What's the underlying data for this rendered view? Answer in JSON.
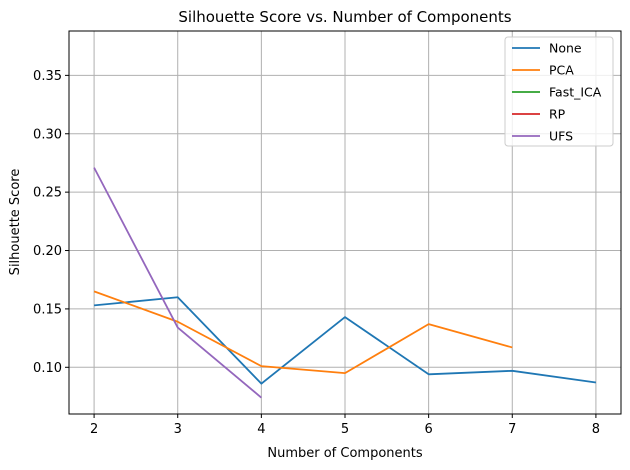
{
  "chart_data": {
    "type": "line",
    "title": "Silhouette Score vs. Number of Components",
    "xlabel": "Number of Components",
    "ylabel": "Silhouette Score",
    "xlim": [
      1.7,
      8.3
    ],
    "ylim": [
      0.06,
      0.388
    ],
    "xticks": [
      2,
      3,
      4,
      5,
      6,
      7,
      8
    ],
    "yticks": [
      0.1,
      0.15,
      0.2,
      0.25,
      0.3,
      0.35
    ],
    "ytick_labels": [
      "0.10",
      "0.15",
      "0.20",
      "0.25",
      "0.30",
      "0.35"
    ],
    "grid": true,
    "legend_position": "top-right",
    "series": [
      {
        "name": "None",
        "color": "#1f77b4",
        "x": [
          2,
          3,
          4,
          5,
          6,
          7,
          8
        ],
        "y": [
          0.153,
          0.16,
          0.086,
          0.143,
          0.094,
          0.097,
          0.087
        ]
      },
      {
        "name": "PCA",
        "color": "#ff7f0e",
        "x": [
          2,
          3,
          4,
          5,
          6,
          7
        ],
        "y": [
          0.165,
          0.139,
          0.101,
          0.095,
          0.137,
          0.117
        ]
      },
      {
        "name": "Fast_ICA",
        "color": "#2ca02c",
        "x": [],
        "y": []
      },
      {
        "name": "RP",
        "color": "#d62728",
        "x": [],
        "y": []
      },
      {
        "name": "UFS",
        "color": "#9467bd",
        "x": [
          2,
          3,
          4
        ],
        "y": [
          0.271,
          0.134,
          0.074
        ]
      }
    ]
  }
}
